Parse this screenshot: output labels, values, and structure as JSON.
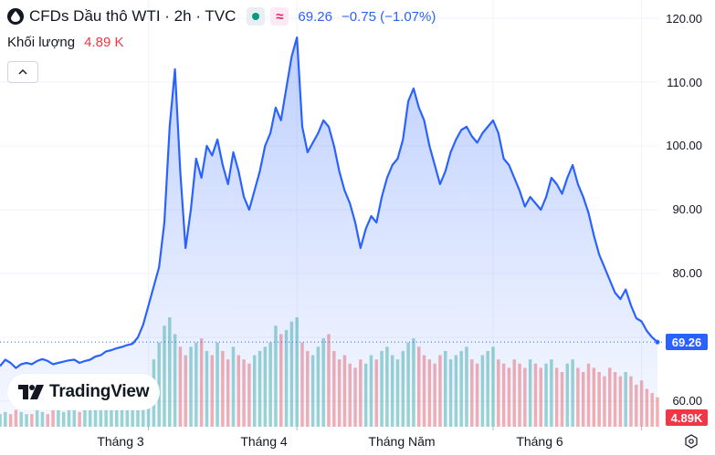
{
  "header": {
    "title": "CFDs Dầu thô WTI · 2h · TVC",
    "price": "69.26",
    "change": "−0.75 (−1.07%)",
    "volume_label": "Khối lượng",
    "volume_value": "4.89 K"
  },
  "logo": {
    "text": "TradingView"
  },
  "y_axis": {
    "labels": [
      "120.00",
      "110.00",
      "100.00",
      "90.00",
      "80.00",
      "60.00"
    ]
  },
  "last_price_tag": "69.26",
  "volume_tag": "4.89K",
  "x_axis": {
    "labels": [
      "Tháng 3",
      "Tháng 4",
      "Tháng Năm",
      "Tháng 6"
    ]
  },
  "colors": {
    "line": "#2962ff",
    "vol_up": "#26a69a",
    "vol_down": "#ef5350",
    "last_tag": "#2962ff",
    "vol_tag": "#f23645"
  },
  "chart_data": {
    "type": "area",
    "symbol": "CFDs Dầu thô WTI",
    "interval": "2h",
    "ylim": [
      58,
      123
    ],
    "x_labels": [
      "Tháng 3",
      "Tháng 4",
      "Tháng Năm",
      "Tháng 6"
    ],
    "x_label_index": [
      28,
      56,
      93,
      121
    ],
    "last_price": 69.26,
    "close": [
      65.5,
      66.5,
      66.0,
      65.2,
      65.8,
      66.0,
      65.8,
      66.3,
      66.6,
      66.3,
      65.8,
      66.0,
      66.2,
      66.4,
      66.5,
      66.0,
      66.3,
      66.5,
      67.0,
      67.2,
      67.8,
      68.0,
      68.3,
      68.5,
      68.8,
      69.0,
      70.0,
      72.0,
      75.0,
      78.0,
      81.0,
      88.0,
      103.0,
      112.0,
      96.0,
      84.0,
      90.0,
      98.0,
      95.0,
      100.0,
      98.5,
      101.0,
      97.0,
      94.0,
      99.0,
      96.0,
      92.0,
      90.0,
      93.0,
      96.0,
      100.0,
      102.0,
      106.0,
      104.0,
      109.0,
      114.0,
      117.0,
      103.0,
      99.0,
      100.5,
      102.0,
      104.0,
      103.0,
      100.0,
      96.0,
      93.0,
      91.0,
      88.0,
      84.0,
      87.0,
      89.0,
      88.0,
      92.0,
      95.0,
      97.0,
      98.0,
      101.0,
      107.0,
      109.0,
      106.0,
      104.0,
      100.0,
      97.0,
      94.0,
      96.0,
      99.0,
      101.0,
      102.5,
      103.0,
      101.5,
      100.5,
      102.0,
      103.0,
      104.0,
      102.0,
      98.0,
      97.0,
      95.0,
      93.0,
      90.5,
      92.0,
      91.0,
      90.0,
      92.0,
      95.0,
      94.0,
      92.5,
      95.0,
      97.0,
      94.0,
      92.0,
      89.5,
      86.0,
      83.0,
      81.0,
      79.0,
      77.0,
      76.0,
      77.5,
      75.0,
      73.0,
      72.5,
      71.0,
      70.0,
      69.26
    ],
    "volume": [
      0.3,
      0.35,
      0.3,
      0.4,
      0.35,
      0.3,
      0.3,
      0.4,
      0.35,
      0.3,
      0.5,
      0.4,
      0.35,
      0.4,
      0.45,
      0.35,
      0.4,
      0.5,
      0.45,
      0.4,
      0.5,
      0.45,
      0.5,
      0.55,
      0.5,
      0.6,
      0.7,
      0.9,
      1.2,
      1.6,
      2.0,
      2.4,
      2.6,
      2.2,
      1.9,
      1.7,
      1.9,
      2.0,
      2.1,
      1.8,
      1.7,
      2.0,
      1.8,
      1.6,
      1.9,
      1.7,
      1.6,
      1.5,
      1.7,
      1.8,
      1.9,
      2.0,
      2.4,
      2.2,
      2.3,
      2.5,
      2.6,
      2.0,
      1.8,
      1.7,
      1.9,
      2.1,
      2.2,
      1.8,
      1.6,
      1.7,
      1.5,
      1.4,
      1.6,
      1.5,
      1.7,
      1.6,
      1.8,
      1.9,
      1.7,
      1.6,
      1.8,
      2.0,
      2.1,
      1.9,
      1.7,
      1.6,
      1.5,
      1.7,
      1.8,
      1.6,
      1.7,
      1.8,
      1.9,
      1.6,
      1.5,
      1.7,
      1.8,
      1.9,
      1.6,
      1.5,
      1.4,
      1.6,
      1.5,
      1.4,
      1.6,
      1.5,
      1.4,
      1.5,
      1.6,
      1.4,
      1.3,
      1.5,
      1.6,
      1.4,
      1.3,
      1.5,
      1.4,
      1.3,
      1.2,
      1.4,
      1.3,
      1.2,
      1.3,
      1.2,
      1.0,
      1.1,
      0.9,
      0.8,
      0.7
    ]
  }
}
